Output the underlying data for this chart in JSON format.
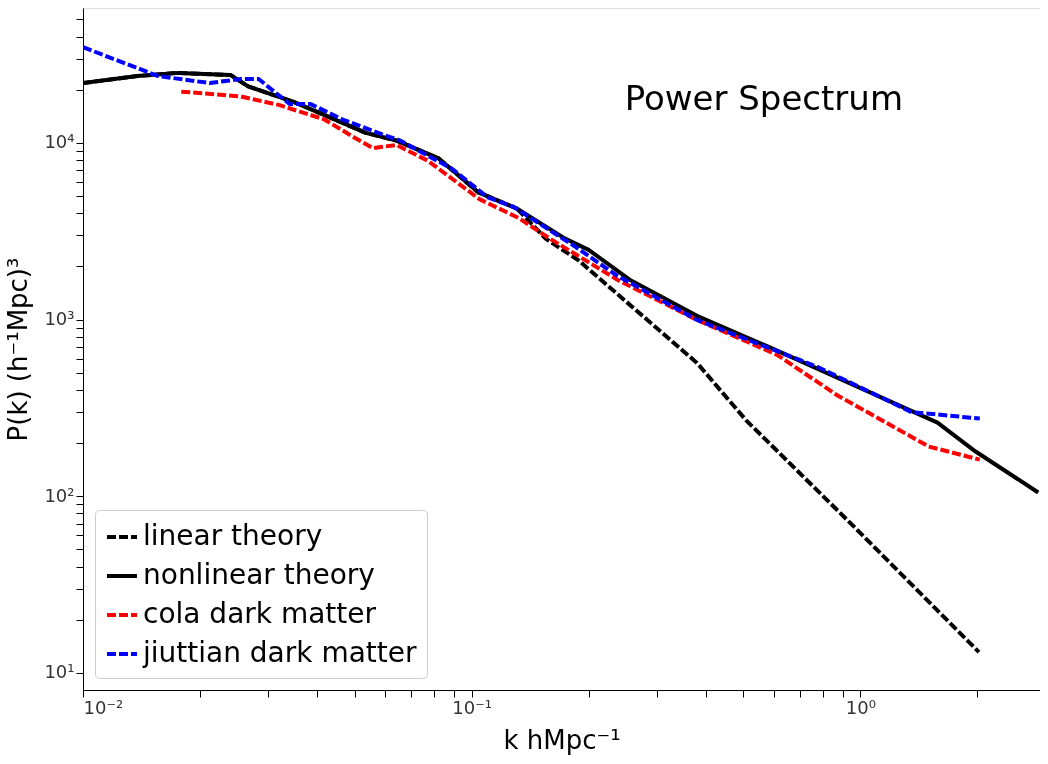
{
  "chart_data": {
    "type": "line",
    "annotations": [
      "Power Spectrum"
    ],
    "xlabel": "k hMpc⁻¹",
    "ylabel": "P(k) (h⁻¹Mpc)³",
    "log": "xy",
    "grid": false,
    "legend": "bottom left",
    "xlim": [
      0.01,
      2.9
    ],
    "ylim": [
      8,
      58000
    ],
    "xticks": [
      {
        "value": 0.01,
        "label": "10⁻²"
      },
      {
        "value": 0.02,
        "label": null
      },
      {
        "value": 0.03,
        "label": null
      },
      {
        "value": 0.04,
        "label": null
      },
      {
        "value": 0.05,
        "label": null
      },
      {
        "value": 0.06,
        "label": null
      },
      {
        "value": 0.07,
        "label": null
      },
      {
        "value": 0.08,
        "label": null
      },
      {
        "value": 0.09,
        "label": null
      },
      {
        "value": 0.1,
        "label": "10⁻¹"
      },
      {
        "value": 0.2,
        "label": null
      },
      {
        "value": 0.3,
        "label": null
      },
      {
        "value": 0.4,
        "label": null
      },
      {
        "value": 0.5,
        "label": null
      },
      {
        "value": 0.6,
        "label": null
      },
      {
        "value": 0.7,
        "label": null
      },
      {
        "value": 0.8,
        "label": null
      },
      {
        "value": 0.9,
        "label": null
      },
      {
        "value": 1,
        "label": "10⁰"
      },
      {
        "value": 2,
        "label": null
      }
    ],
    "yticks": [
      {
        "value": 10,
        "label": "10¹"
      },
      {
        "value": 20,
        "label": null
      },
      {
        "value": 30,
        "label": null
      },
      {
        "value": 40,
        "label": null
      },
      {
        "value": 50,
        "label": null
      },
      {
        "value": 60,
        "label": null
      },
      {
        "value": 70,
        "label": null
      },
      {
        "value": 80,
        "label": null
      },
      {
        "value": 90,
        "label": null
      },
      {
        "value": 100,
        "label": "10²"
      },
      {
        "value": 200,
        "label": null
      },
      {
        "value": 300,
        "label": null
      },
      {
        "value": 400,
        "label": null
      },
      {
        "value": 500,
        "label": null
      },
      {
        "value": 600,
        "label": null
      },
      {
        "value": 700,
        "label": null
      },
      {
        "value": 800,
        "label": null
      },
      {
        "value": 900,
        "label": null
      },
      {
        "value": 1000,
        "label": "10³"
      },
      {
        "value": 2000,
        "label": null
      },
      {
        "value": 3000,
        "label": null
      },
      {
        "value": 4000,
        "label": null
      },
      {
        "value": 5000,
        "label": null
      },
      {
        "value": 6000,
        "label": null
      },
      {
        "value": 7000,
        "label": null
      },
      {
        "value": 8000,
        "label": null
      },
      {
        "value": 9000,
        "label": null
      },
      {
        "value": 10000,
        "label": "10⁴"
      },
      {
        "value": 20000,
        "label": null
      },
      {
        "value": 30000,
        "label": null
      },
      {
        "value": 40000,
        "label": null
      },
      {
        "value": 50000,
        "label": null
      }
    ],
    "series": [
      {
        "name": "linear theory",
        "color": "#000000",
        "line_style": "dashed",
        "x": [
          0.01,
          0.0138,
          0.0176,
          0.024,
          0.0266,
          0.0347,
          0.0417,
          0.0534,
          0.0641,
          0.082,
          0.104,
          0.131,
          0.155,
          0.188,
          0.26,
          0.38,
          0.51,
          0.946,
          2.02
        ],
        "values": [
          21800,
          23900,
          24900,
          24200,
          20900,
          17100,
          14400,
          11400,
          10300,
          8200,
          5250,
          4240,
          2870,
          2170,
          1170,
          568,
          267,
          70,
          13.1
        ]
      },
      {
        "name": "nonlinear theory",
        "color": "#000000",
        "line_style": "solid",
        "x": [
          0.01,
          0.0138,
          0.0176,
          0.024,
          0.0266,
          0.0347,
          0.0417,
          0.0534,
          0.0641,
          0.082,
          0.104,
          0.131,
          0.174,
          0.2,
          0.255,
          0.38,
          0.611,
          0.982,
          1.58,
          1.98,
          2.87
        ],
        "values": [
          21800,
          23900,
          24900,
          24200,
          20900,
          17100,
          14400,
          11400,
          10300,
          8200,
          5250,
          4240,
          2870,
          2480,
          1680,
          1050,
          667,
          417,
          261,
          179,
          105
        ]
      },
      {
        "name": "cola dark matter",
        "color": "#ff0000",
        "line_style": "dashed",
        "x": [
          0.0179,
          0.0255,
          0.0319,
          0.0417,
          0.05,
          0.0557,
          0.0641,
          0.077,
          0.105,
          0.132,
          0.159,
          0.237,
          0.38,
          0.611,
          0.87,
          1.5,
          2.03
        ],
        "values": [
          19500,
          18300,
          16400,
          13600,
          10700,
          9340,
          9730,
          7940,
          4790,
          3760,
          2870,
          1680,
          995,
          631,
          374,
          191,
          161
        ]
      },
      {
        "name": "jiuttian dark matter",
        "color": "#0000ff",
        "line_style": "dashed",
        "x": [
          0.01,
          0.0156,
          0.0212,
          0.0255,
          0.0283,
          0.034,
          0.0385,
          0.0464,
          0.0593,
          0.0655,
          0.089,
          0.11,
          0.128,
          0.183,
          0.237,
          0.38,
          0.78,
          1.36,
          1.58,
          2.03
        ],
        "values": [
          34800,
          23900,
          21800,
          23000,
          23000,
          16600,
          16600,
          13600,
          11100,
          10300,
          7140,
          4910,
          4350,
          2620,
          1770,
          995,
          537,
          298,
          290,
          275
        ]
      }
    ]
  }
}
